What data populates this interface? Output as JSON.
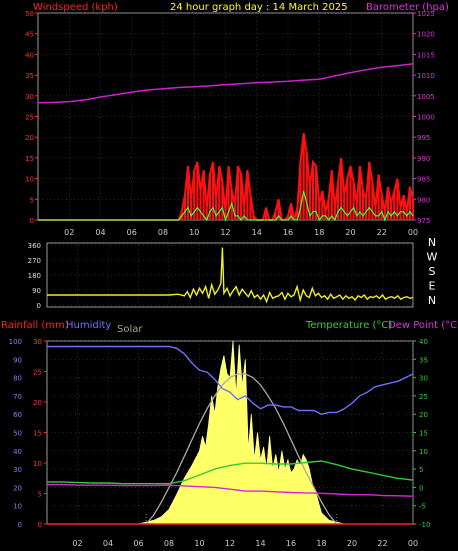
{
  "chart_data": [
    {
      "type": "line",
      "title": "24 hour graph day : 14 March 2025",
      "left_axis_label": "Windspeed (kph)",
      "right_axis_label": "Barometer (hpa)",
      "x_ticks": [
        "02",
        "04",
        "06",
        "08",
        "10",
        "12",
        "14",
        "16",
        "18",
        "20",
        "22",
        "00"
      ],
      "left_ticks": [
        "0",
        "5",
        "10",
        "15",
        "20",
        "25",
        "30",
        "35",
        "40",
        "45",
        "50"
      ],
      "right_ticks": [
        "975",
        "980",
        "985",
        "990",
        "995",
        "1000",
        "1005",
        "1010",
        "1015",
        "1020",
        "1025"
      ],
      "ylim_left": [
        0,
        50
      ],
      "ylim_right": [
        975,
        1025
      ],
      "series": [
        {
          "axis": "right",
          "hour": [
            0,
            1,
            2,
            3,
            4,
            5,
            6,
            7,
            8,
            9,
            10,
            11,
            12,
            13,
            14,
            15,
            16,
            17,
            18,
            19,
            20,
            21,
            22,
            23,
            24
          ],
          "values": [
            1003.3,
            1003.4,
            1003.6,
            1004.0,
            1004.7,
            1005.3,
            1005.9,
            1006.4,
            1006.7,
            1007.0,
            1007.2,
            1007.4,
            1007.7,
            1007.9,
            1008.2,
            1008.3,
            1008.5,
            1008.8,
            1009.0,
            1009.8,
            1010.6,
            1011.3,
            1011.9,
            1012.3,
            1012.7
          ]
        },
        {
          "axis": "left",
          "hour": [
            0,
            1,
            2,
            3,
            4,
            5,
            6,
            7,
            8,
            9,
            9.2,
            9.4,
            9.6,
            9.8,
            10,
            10.2,
            10.4,
            10.6,
            10.8,
            11,
            11.2,
            11.4,
            11.6,
            11.8,
            12,
            12.2,
            12.4,
            12.6,
            12.8,
            13,
            13.2,
            13.4,
            13.6,
            13.8,
            14,
            14.2,
            14.4,
            14.6,
            14.8,
            15,
            15.2,
            15.4,
            15.6,
            15.8,
            16,
            16.2,
            16.4,
            16.6,
            16.8,
            17,
            17.2,
            17.4,
            17.6,
            17.8,
            18,
            18.2,
            18.4,
            18.6,
            18.8,
            19,
            19.2,
            19.4,
            19.6,
            19.8,
            20,
            20.2,
            20.4,
            20.6,
            20.8,
            21,
            21.2,
            21.4,
            21.6,
            21.8,
            22,
            22.2,
            22.4,
            22.6,
            22.8,
            23,
            23.2,
            23.4,
            23.6,
            23.8,
            24
          ],
          "values": [
            0,
            0,
            0,
            0,
            0,
            0,
            0,
            0,
            0,
            0,
            2,
            6,
            13,
            5,
            12,
            14,
            7,
            12,
            3,
            11,
            14,
            5,
            13,
            9,
            2,
            13,
            7,
            4,
            13,
            11,
            3,
            12,
            6,
            1,
            0,
            0,
            0,
            3,
            0,
            0,
            2,
            5,
            0,
            0,
            1,
            4,
            0,
            3,
            14,
            21,
            16,
            8,
            14,
            13,
            4,
            7,
            2,
            5,
            12,
            3,
            9,
            15,
            6,
            10,
            13,
            9,
            4,
            13,
            7,
            5,
            14,
            9,
            3,
            11,
            6,
            2,
            8,
            4,
            7,
            10,
            3,
            6,
            2,
            8,
            5
          ]
        },
        {
          "axis": "left",
          "hour": [
            0,
            1,
            2,
            3,
            4,
            5,
            6,
            7,
            8,
            9,
            9.2,
            9.4,
            9.6,
            9.8,
            10,
            10.2,
            10.4,
            10.6,
            10.8,
            11,
            11.2,
            11.4,
            11.6,
            11.8,
            12,
            12.2,
            12.4,
            12.6,
            12.8,
            13,
            13.2,
            13.4,
            13.6,
            13.8,
            14,
            14.2,
            14.4,
            14.6,
            14.8,
            15,
            15.2,
            15.4,
            15.6,
            15.8,
            16,
            16.2,
            16.4,
            16.6,
            16.8,
            17,
            17.2,
            17.4,
            17.6,
            17.8,
            18,
            18.2,
            18.4,
            18.6,
            18.8,
            19,
            19.2,
            19.4,
            19.6,
            19.8,
            20,
            20.2,
            20.4,
            20.6,
            20.8,
            21,
            21.2,
            21.4,
            21.6,
            21.8,
            22,
            22.2,
            22.4,
            22.6,
            22.8,
            23,
            23.2,
            23.4,
            23.6,
            23.8,
            24
          ],
          "values": [
            0,
            0,
            0,
            0,
            0,
            0,
            0,
            0,
            0,
            0,
            1,
            2,
            3,
            1,
            2,
            3,
            2,
            1,
            0,
            2,
            3,
            1,
            2,
            3,
            0,
            2,
            4,
            1,
            1,
            0,
            1,
            0,
            0,
            0,
            0,
            0,
            0,
            0,
            0,
            0,
            0,
            1,
            0,
            0,
            0,
            1,
            0,
            0,
            3,
            7,
            4,
            1,
            2,
            2,
            0,
            1,
            1,
            0,
            1,
            0,
            2,
            3,
            2,
            1,
            2,
            3,
            1,
            2,
            1,
            2,
            3,
            2,
            1,
            1,
            2,
            0,
            2,
            1,
            2,
            1,
            2,
            2,
            1,
            2,
            1
          ]
        }
      ]
    },
    {
      "type": "line",
      "right_labels": [
        "N",
        "W",
        "S",
        "E",
        "N"
      ],
      "left_ticks": [
        "0",
        "90",
        "180",
        "270",
        "360"
      ],
      "ylim": [
        0,
        360
      ],
      "series": [
        {
          "hour": [
            0,
            1,
            2,
            3,
            4,
            5,
            6,
            7,
            8,
            8.6,
            9,
            9.2,
            9.4,
            9.6,
            9.8,
            10,
            10.2,
            10.4,
            10.6,
            10.8,
            11,
            11.2,
            11.4,
            11.5,
            11.6,
            11.8,
            12,
            12.2,
            12.4,
            12.6,
            12.8,
            13,
            13.2,
            13.4,
            13.6,
            13.8,
            14,
            14.2,
            14.4,
            14.6,
            14.8,
            15,
            15.2,
            15.4,
            15.6,
            15.8,
            16,
            16.2,
            16.4,
            16.6,
            16.8,
            17,
            17.2,
            17.4,
            17.6,
            17.8,
            18,
            18.2,
            18.4,
            18.6,
            18.8,
            19,
            19.2,
            19.4,
            19.6,
            19.8,
            20,
            20.2,
            20.4,
            20.6,
            20.8,
            21,
            21.2,
            21.4,
            21.6,
            21.8,
            22,
            22.2,
            22.4,
            22.6,
            22.8,
            23,
            23.2,
            23.4,
            23.6,
            23.8,
            24
          ],
          "values": [
            60,
            60,
            60,
            60,
            60,
            60,
            60,
            60,
            60,
            65,
            55,
            80,
            45,
            95,
            60,
            100,
            70,
            110,
            40,
            120,
            65,
            90,
            130,
            345,
            70,
            100,
            55,
            85,
            110,
            60,
            95,
            70,
            50,
            85,
            45,
            60,
            35,
            60,
            20,
            75,
            40,
            50,
            55,
            75,
            35,
            70,
            50,
            60,
            110,
            30,
            90,
            55,
            45,
            100,
            55,
            70,
            45,
            55,
            35,
            65,
            40,
            50,
            60,
            35,
            55,
            40,
            50,
            30,
            55,
            45,
            60,
            35,
            50,
            45,
            55,
            40,
            60,
            35,
            45,
            50,
            40,
            55,
            35,
            45,
            50,
            40,
            45
          ]
        }
      ]
    },
    {
      "type": "line",
      "left_label_1": "Rainfall (mm)",
      "left_label_2": "Humidity",
      "left_label_3": "Solar",
      "right_label_1": "Temperature (°C)",
      "right_label_2": "Dew Point (°C)",
      "humidity_ticks": [
        "0",
        "10",
        "20",
        "30",
        "40",
        "50",
        "60",
        "70",
        "80",
        "90",
        "100"
      ],
      "rain_ticks": [
        "0",
        "5",
        "10",
        "15",
        "20",
        "25",
        "30"
      ],
      "temp_ticks": [
        "-10",
        "-5",
        "0",
        "5",
        "10",
        "15",
        "20",
        "25",
        "30",
        "35",
        "40"
      ],
      "ylim_humidity": [
        0,
        100
      ],
      "ylim_rain": [
        0,
        30
      ],
      "ylim_temp": [
        -10,
        40
      ],
      "series": [
        {
          "name": "Humidity",
          "hour": [
            0,
            1,
            2,
            3,
            4,
            5,
            6,
            7,
            8,
            8.5,
            9,
            9.5,
            10,
            10.5,
            11,
            11.5,
            12,
            12.5,
            13,
            13.5,
            14,
            14.5,
            15,
            15.5,
            16,
            16.5,
            17,
            17.5,
            18,
            18.5,
            19,
            19.5,
            20,
            20.5,
            21,
            21.5,
            22,
            22.5,
            23,
            23.5,
            24
          ],
          "values": [
            97,
            97,
            97,
            97,
            97,
            97,
            97,
            97,
            97,
            96,
            93,
            88,
            84,
            83,
            79,
            74,
            72,
            68,
            70,
            66,
            63,
            65,
            65,
            64,
            64,
            62,
            62,
            62,
            60,
            61,
            61,
            63,
            66,
            70,
            72,
            75,
            76,
            77,
            78,
            80,
            82
          ]
        },
        {
          "name": "Temperature",
          "hour": [
            0,
            1,
            2,
            3,
            4,
            5,
            6,
            7,
            8,
            9,
            10,
            11,
            12,
            13,
            14,
            15,
            16,
            17,
            18,
            19,
            20,
            21,
            22,
            23,
            24
          ],
          "values": [
            1.5,
            1.5,
            1.3,
            1.2,
            1.2,
            1.0,
            1.0,
            1.0,
            1.0,
            1.8,
            3.4,
            5.0,
            6.0,
            6.6,
            6.6,
            6.4,
            6.4,
            6.8,
            7.2,
            6.2,
            5.0,
            4.2,
            3.3,
            2.5,
            2.0
          ]
        },
        {
          "name": "Dew Point",
          "hour": [
            0,
            1,
            2,
            3,
            4,
            5,
            6,
            7,
            8,
            9,
            10,
            11,
            12,
            13,
            14,
            15,
            16,
            17,
            18,
            19,
            20,
            21,
            22,
            23,
            24
          ],
          "values": [
            0.8,
            0.8,
            0.6,
            0.6,
            0.6,
            0.5,
            0.5,
            0.5,
            0.6,
            0.4,
            0.2,
            0.0,
            -0.5,
            -1.0,
            -1.0,
            -1.2,
            -1.4,
            -1.5,
            -1.6,
            -1.8,
            -2.0,
            -2.0,
            -2.2,
            -2.3,
            -2.4
          ]
        },
        {
          "name": "Solar",
          "hour": [
            6.0,
            6.5,
            7,
            7.5,
            8,
            8.5,
            9,
            9.5,
            10,
            10.2,
            10.4,
            10.6,
            10.8,
            11,
            11.2,
            11.4,
            11.6,
            11.8,
            12,
            12.2,
            12.4,
            12.6,
            12.8,
            13,
            13.2,
            13.4,
            13.6,
            13.8,
            14,
            14.2,
            14.4,
            14.6,
            14.8,
            15,
            15.2,
            15.4,
            15.6,
            15.8,
            16,
            16.2,
            16.4,
            16.6,
            16.8,
            17,
            17.2,
            17.4,
            17.6,
            17.8,
            18,
            18.5,
            19,
            19.5
          ],
          "values": [
            0,
            1,
            2,
            4,
            8,
            16,
            25,
            32,
            40,
            48,
            42,
            55,
            70,
            60,
            75,
            85,
            92,
            82,
            80,
            100,
            70,
            98,
            75,
            90,
            40,
            60,
            35,
            50,
            35,
            42,
            30,
            48,
            30,
            38,
            28,
            40,
            30,
            35,
            28,
            30,
            35,
            32,
            38,
            35,
            30,
            22,
            18,
            12,
            6,
            2,
            1,
            0
          ]
        },
        {
          "name": "Solar theoretical",
          "hour": [
            6.5,
            7,
            7.5,
            8,
            8.5,
            9,
            9.5,
            10,
            10.5,
            11,
            11.5,
            12,
            12.5,
            13,
            13.5,
            14,
            14.5,
            15,
            15.5,
            16,
            16.5,
            17,
            17.5,
            18,
            18.5,
            19
          ],
          "values": [
            0,
            5,
            12,
            20,
            28,
            37,
            46,
            55,
            63,
            70,
            76,
            80,
            82,
            82,
            80,
            76,
            70,
            63,
            55,
            46,
            37,
            28,
            20,
            12,
            5,
            0
          ]
        },
        {
          "name": "Rainfall",
          "hour": [
            0,
            24
          ],
          "values": [
            0,
            0
          ]
        }
      ]
    }
  ],
  "colors": {
    "windspeed": "#ff1010",
    "gust_green": "#44ff44",
    "barometer": "#cc22cc",
    "direction": "#eeee22",
    "humidity": "#7070ff",
    "temperature": "#33cc33",
    "dewpoint": "#dd22dd",
    "solar": "#ffff66",
    "solar_max": "#a8a8a8",
    "rain": "#ff2020"
  }
}
